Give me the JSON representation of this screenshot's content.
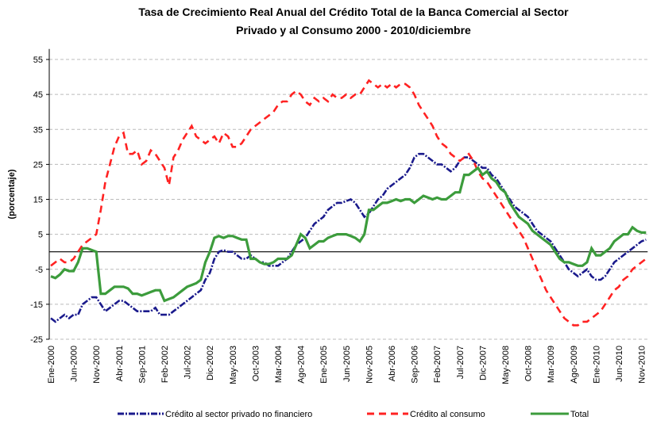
{
  "chart_data": {
    "type": "line",
    "title": "Tasa de Crecimiento Real Anual del Crédito Total de la Banca Comercial al Sector",
    "subtitle": "Privado y al Consumo 2000 - 2010/diciembre",
    "y_label": "(porcentaje)",
    "ylim": [
      -25,
      58
    ],
    "yticks": [
      -25,
      -15,
      -5,
      5,
      15,
      25,
      35,
      45,
      55
    ],
    "grid": true,
    "legend": "bottom",
    "categories": [
      "Ene-2000",
      null,
      null,
      null,
      null,
      "Jun-2000",
      null,
      null,
      null,
      null,
      "Nov-2000",
      null,
      null,
      null,
      null,
      "Abr-2001",
      null,
      null,
      null,
      null,
      "Sep-2001",
      null,
      null,
      null,
      null,
      "Feb-2002",
      null,
      null,
      null,
      null,
      "Jul-2002",
      null,
      null,
      null,
      null,
      "Dic-2002",
      null,
      null,
      null,
      null,
      "May-2003",
      null,
      null,
      null,
      null,
      "Oct-2003",
      null,
      null,
      null,
      null,
      "Mar-2004",
      null,
      null,
      null,
      null,
      "Ago-2004",
      null,
      null,
      null,
      null,
      "Ene-2005",
      null,
      null,
      null,
      null,
      "Jun-2005",
      null,
      null,
      null,
      null,
      "Nov-2005",
      null,
      null,
      null,
      null,
      "Abr-2006",
      null,
      null,
      null,
      null,
      "Sep-2006",
      null,
      null,
      null,
      null,
      "Feb-2007",
      null,
      null,
      null,
      null,
      "Jul-2007",
      null,
      null,
      null,
      null,
      "Dic-2007",
      null,
      null,
      null,
      null,
      "May-2008",
      null,
      null,
      null,
      null,
      "Oct-2008",
      null,
      null,
      null,
      null,
      "Mar-2009",
      null,
      null,
      null,
      null,
      "Ago-2009",
      null,
      null,
      null,
      null,
      "Ene-2010",
      null,
      null,
      null,
      null,
      "Jun-2010",
      null,
      null,
      null,
      null,
      "Nov-2010",
      null
    ],
    "series": [
      {
        "name": "Crédito al sector privado no financiero",
        "color": "#1a1a8c",
        "dash": "8 2 2 2",
        "values": [
          -19,
          -20,
          -19,
          -18,
          -19,
          -18,
          -18,
          -15,
          -14,
          -13,
          -13,
          -15,
          -17,
          -16,
          -15,
          -14,
          -14,
          -15,
          -16,
          -17,
          -17,
          -17,
          -17,
          -16,
          -18,
          -18,
          -18,
          -17,
          -16,
          -15,
          -14,
          -13,
          -12,
          -11,
          -8,
          -6,
          -2,
          0,
          0.5,
          0,
          0,
          -1,
          -2,
          -2,
          -1,
          -2,
          -3,
          -3,
          -4,
          -4,
          -4,
          -3,
          -2,
          0,
          2,
          3,
          4,
          6,
          8,
          9,
          10,
          12,
          13,
          14,
          14,
          14.5,
          15,
          14,
          12,
          10,
          11,
          13,
          15,
          16,
          18,
          19,
          20,
          21,
          22,
          24,
          27,
          28,
          28,
          27,
          26,
          25,
          25,
          24,
          23,
          24,
          26,
          27,
          27,
          26,
          25,
          24,
          24,
          22,
          21,
          19,
          17,
          15,
          13,
          12,
          11,
          10,
          8,
          6,
          5,
          4,
          3,
          1,
          -1,
          -3,
          -5,
          -6,
          -7,
          -6,
          -5,
          -7,
          -8,
          -8,
          -7,
          -5,
          -3,
          -2,
          -1,
          0,
          1,
          2,
          3,
          3.5
        ]
      },
      {
        "name": "Crédito al consumo",
        "color": "#ff2222",
        "dash": "9 6",
        "values": [
          -4,
          -3,
          -2,
          -3,
          -3,
          -2,
          0,
          2,
          3,
          4,
          5,
          12,
          20,
          25,
          30,
          33,
          34,
          28,
          28,
          29,
          25,
          26,
          29,
          28,
          26,
          24,
          19,
          27,
          29,
          32,
          34,
          36,
          33,
          32,
          31,
          32,
          33,
          31,
          34,
          33,
          30,
          30,
          31,
          33,
          35,
          36,
          37,
          38,
          39,
          40,
          42,
          43,
          43,
          45,
          46,
          45,
          43,
          42,
          44,
          43,
          44,
          43,
          45,
          44,
          44,
          45,
          44,
          45,
          45,
          47,
          49,
          48,
          47,
          48,
          47,
          48,
          47,
          48,
          48,
          47,
          45,
          42,
          40,
          38,
          36,
          33,
          31,
          30,
          28,
          27,
          26,
          27,
          28,
          26,
          23,
          21,
          20,
          18,
          16,
          14,
          12,
          10,
          8,
          6,
          4,
          1,
          -2,
          -5,
          -8,
          -11,
          -13,
          -15,
          -17,
          -19,
          -20,
          -21,
          -21,
          -20,
          -20,
          -19,
          -18,
          -17,
          -15,
          -13,
          -11,
          -10,
          -8,
          -7,
          -5,
          -4,
          -3,
          -2
        ]
      },
      {
        "name": "Total",
        "color": "#3c9c3c",
        "dash": "none",
        "values": [
          -7,
          -7.5,
          -6.5,
          -5,
          -5.5,
          -5.5,
          -3,
          1,
          1,
          0.5,
          0,
          -12,
          -12,
          -11,
          -10,
          -10,
          -10,
          -10.5,
          -12,
          -12,
          -12.5,
          -12,
          -11.5,
          -11,
          -11,
          -14,
          -13.5,
          -13,
          -12,
          -11,
          -10,
          -9.5,
          -9,
          -8,
          -3,
          0,
          4,
          4.5,
          4,
          4.5,
          4.5,
          4,
          3.5,
          3.5,
          -2,
          -2,
          -3,
          -3.5,
          -3.5,
          -3,
          -2,
          -2,
          -2,
          -1,
          2,
          5,
          4,
          1,
          2,
          3,
          3,
          4,
          4.5,
          5,
          5,
          5,
          4.5,
          4,
          3,
          5,
          12,
          12,
          13,
          14,
          14,
          14.5,
          15,
          14.5,
          15,
          15,
          14,
          15,
          16,
          15.5,
          15,
          15.5,
          15,
          15,
          16,
          17,
          17,
          22,
          22,
          23,
          24,
          22,
          23,
          21,
          20,
          18,
          17,
          14,
          12,
          10,
          9,
          8,
          6,
          5,
          4,
          3,
          2,
          0,
          -2,
          -3,
          -3,
          -3.5,
          -4,
          -4,
          -3,
          1,
          -1,
          -1,
          0,
          1,
          3,
          4,
          5,
          5,
          7,
          6,
          5.5,
          5.5
        ]
      }
    ]
  }
}
